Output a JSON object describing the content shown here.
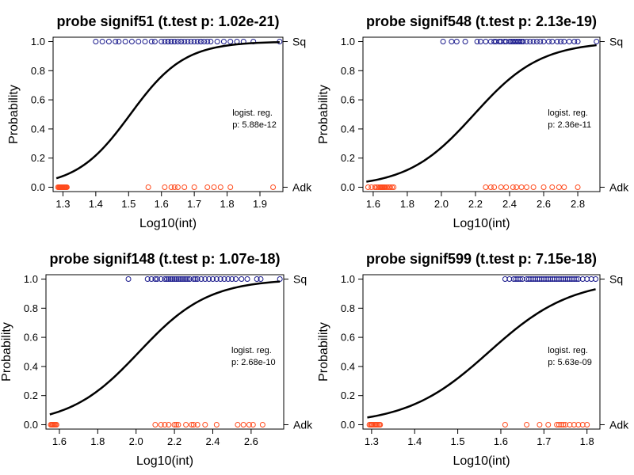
{
  "chart_data": [
    {
      "type": "scatter",
      "title": "probe signif51 (t.test p: 1.02e-21)",
      "xlabel": "Log10(int)",
      "ylabel": "Probability",
      "xlim": [
        1.27,
        1.97
      ],
      "ylim": [
        -0.03,
        1.03
      ],
      "xticks": [
        1.3,
        1.4,
        1.5,
        1.6,
        1.7,
        1.8,
        1.9
      ],
      "yticks": [
        0.0,
        0.2,
        0.4,
        0.6,
        0.8,
        1.0
      ],
      "right_labels": {
        "top": "Sq",
        "bottom": "Adk"
      },
      "annotation": [
        "logist. reg.",
        "p: 5.88e-12"
      ],
      "curve": {
        "x0": 1.505,
        "k": 12.14,
        "x_start": 1.28,
        "x_end": 1.96
      },
      "series": [
        {
          "name": "Sq",
          "y": 1,
          "color": "#1a1a8c",
          "x": [
            1.4,
            1.42,
            1.44,
            1.46,
            1.47,
            1.49,
            1.51,
            1.53,
            1.55,
            1.57,
            1.58,
            1.6,
            1.61,
            1.62,
            1.62,
            1.63,
            1.63,
            1.64,
            1.64,
            1.65,
            1.66,
            1.66,
            1.67,
            1.68,
            1.69,
            1.7,
            1.71,
            1.72,
            1.72,
            1.73,
            1.74,
            1.75,
            1.77,
            1.79,
            1.81,
            1.83,
            1.85,
            1.88,
            1.96
          ]
        },
        {
          "name": "Adk",
          "y": 0,
          "color": "#ff4a1c",
          "x": [
            1.285,
            1.288,
            1.29,
            1.292,
            1.294,
            1.296,
            1.298,
            1.3,
            1.302,
            1.304,
            1.306,
            1.308,
            1.31,
            1.312,
            1.56,
            1.61,
            1.63,
            1.64,
            1.65,
            1.67,
            1.7,
            1.74,
            1.76,
            1.78,
            1.81,
            1.94
          ]
        }
      ]
    },
    {
      "type": "scatter",
      "title": "probe signif548 (t.test p: 2.13e-19)",
      "xlabel": "Log10(int)",
      "ylabel": "Probability",
      "xlim": [
        1.54,
        2.93
      ],
      "ylim": [
        -0.03,
        1.03
      ],
      "xticks": [
        1.6,
        1.8,
        2.0,
        2.2,
        2.4,
        2.6,
        2.8
      ],
      "yticks": [
        0.0,
        0.2,
        0.4,
        0.6,
        0.8,
        1.0
      ],
      "right_labels": {
        "top": "Sq",
        "bottom": "Adk"
      },
      "annotation": [
        "logist. reg.",
        "p: 2.36e-11"
      ],
      "curve": {
        "x0": 2.192,
        "k": 5.12,
        "x_start": 1.56,
        "x_end": 2.91
      },
      "series": [
        {
          "name": "Sq",
          "y": 1,
          "color": "#1a1a8c",
          "x": [
            2.01,
            2.06,
            2.09,
            2.14,
            2.21,
            2.23,
            2.26,
            2.29,
            2.31,
            2.32,
            2.34,
            2.35,
            2.37,
            2.38,
            2.4,
            2.41,
            2.42,
            2.43,
            2.44,
            2.45,
            2.46,
            2.47,
            2.48,
            2.5,
            2.52,
            2.54,
            2.56,
            2.58,
            2.6,
            2.63,
            2.65,
            2.68,
            2.7,
            2.72,
            2.75,
            2.78,
            2.8,
            2.91
          ]
        },
        {
          "name": "Adk",
          "y": 0,
          "color": "#ff4a1c",
          "x": [
            1.57,
            1.59,
            1.61,
            1.62,
            1.63,
            1.64,
            1.645,
            1.65,
            1.655,
            1.66,
            1.665,
            1.67,
            1.68,
            1.69,
            1.7,
            1.71,
            1.72,
            2.26,
            2.29,
            2.31,
            2.35,
            2.38,
            2.42,
            2.44,
            2.47,
            2.5,
            2.54,
            2.6,
            2.65,
            2.69,
            2.72,
            2.8
          ]
        }
      ]
    },
    {
      "type": "scatter",
      "title": "probe signif148 (t.test p: 1.07e-18)",
      "xlabel": "Log10(int)",
      "ylabel": "Probability",
      "xlim": [
        1.53,
        2.77
      ],
      "ylim": [
        -0.03,
        1.03
      ],
      "xticks": [
        1.6,
        1.8,
        2.0,
        2.2,
        2.4,
        2.6
      ],
      "yticks": [
        0.0,
        0.2,
        0.4,
        0.6,
        0.8,
        1.0
      ],
      "right_labels": {
        "top": "Sq",
        "bottom": "Adk"
      },
      "annotation": [
        "logist. reg.",
        "p: 2.68e-10"
      ],
      "curve": {
        "x0": 2.016,
        "k": 5.53,
        "x_start": 1.55,
        "x_end": 2.75
      },
      "series": [
        {
          "name": "Sq",
          "y": 1,
          "color": "#1a1a8c",
          "x": [
            1.96,
            2.06,
            2.08,
            2.1,
            2.11,
            2.13,
            2.15,
            2.16,
            2.17,
            2.18,
            2.19,
            2.2,
            2.21,
            2.22,
            2.23,
            2.24,
            2.25,
            2.26,
            2.27,
            2.28,
            2.3,
            2.31,
            2.32,
            2.34,
            2.36,
            2.38,
            2.4,
            2.42,
            2.44,
            2.46,
            2.48,
            2.5,
            2.52,
            2.55,
            2.58,
            2.63,
            2.65,
            2.75
          ]
        },
        {
          "name": "Adk",
          "y": 0,
          "color": "#ff4a1c",
          "x": [
            1.555,
            1.56,
            1.565,
            1.57,
            1.575,
            1.58,
            1.585,
            2.1,
            2.13,
            2.15,
            2.17,
            2.2,
            2.21,
            2.22,
            2.26,
            2.29,
            2.3,
            2.32,
            2.36,
            2.42,
            2.53,
            2.56,
            2.59,
            2.61,
            2.66
          ]
        }
      ]
    },
    {
      "type": "scatter",
      "title": "probe signif599 (t.test p: 7.15e-18)",
      "xlabel": "Log10(int)",
      "ylabel": "Probability",
      "xlim": [
        1.28,
        1.83
      ],
      "ylim": [
        -0.03,
        1.03
      ],
      "xticks": [
        1.3,
        1.4,
        1.5,
        1.6,
        1.7,
        1.8
      ],
      "yticks": [
        0.0,
        0.2,
        0.4,
        0.6,
        0.8,
        1.0
      ],
      "right_labels": {
        "top": "Sq",
        "bottom": "Adk"
      },
      "annotation": [
        "logist. reg.",
        "p: 5.63e-09"
      ],
      "curve": {
        "x0": 1.5725,
        "k": 10.47,
        "x_start": 1.29,
        "x_end": 1.82
      },
      "series": [
        {
          "name": "Sq",
          "y": 1,
          "color": "#1a1a8c",
          "x": [
            1.61,
            1.62,
            1.63,
            1.635,
            1.64,
            1.645,
            1.65,
            1.66,
            1.665,
            1.67,
            1.675,
            1.68,
            1.685,
            1.69,
            1.695,
            1.7,
            1.705,
            1.71,
            1.715,
            1.72,
            1.725,
            1.73,
            1.735,
            1.74,
            1.745,
            1.75,
            1.755,
            1.76,
            1.765,
            1.77,
            1.775,
            1.78,
            1.79,
            1.8,
            1.81,
            1.82
          ]
        },
        {
          "name": "Adk",
          "y": 0,
          "color": "#ff4a1c",
          "x": [
            1.295,
            1.298,
            1.3,
            1.302,
            1.305,
            1.308,
            1.31,
            1.312,
            1.315,
            1.318,
            1.32,
            1.61,
            1.66,
            1.69,
            1.71,
            1.73,
            1.735,
            1.74,
            1.745,
            1.75,
            1.76,
            1.77,
            1.78,
            1.79,
            1.8
          ]
        }
      ]
    }
  ]
}
